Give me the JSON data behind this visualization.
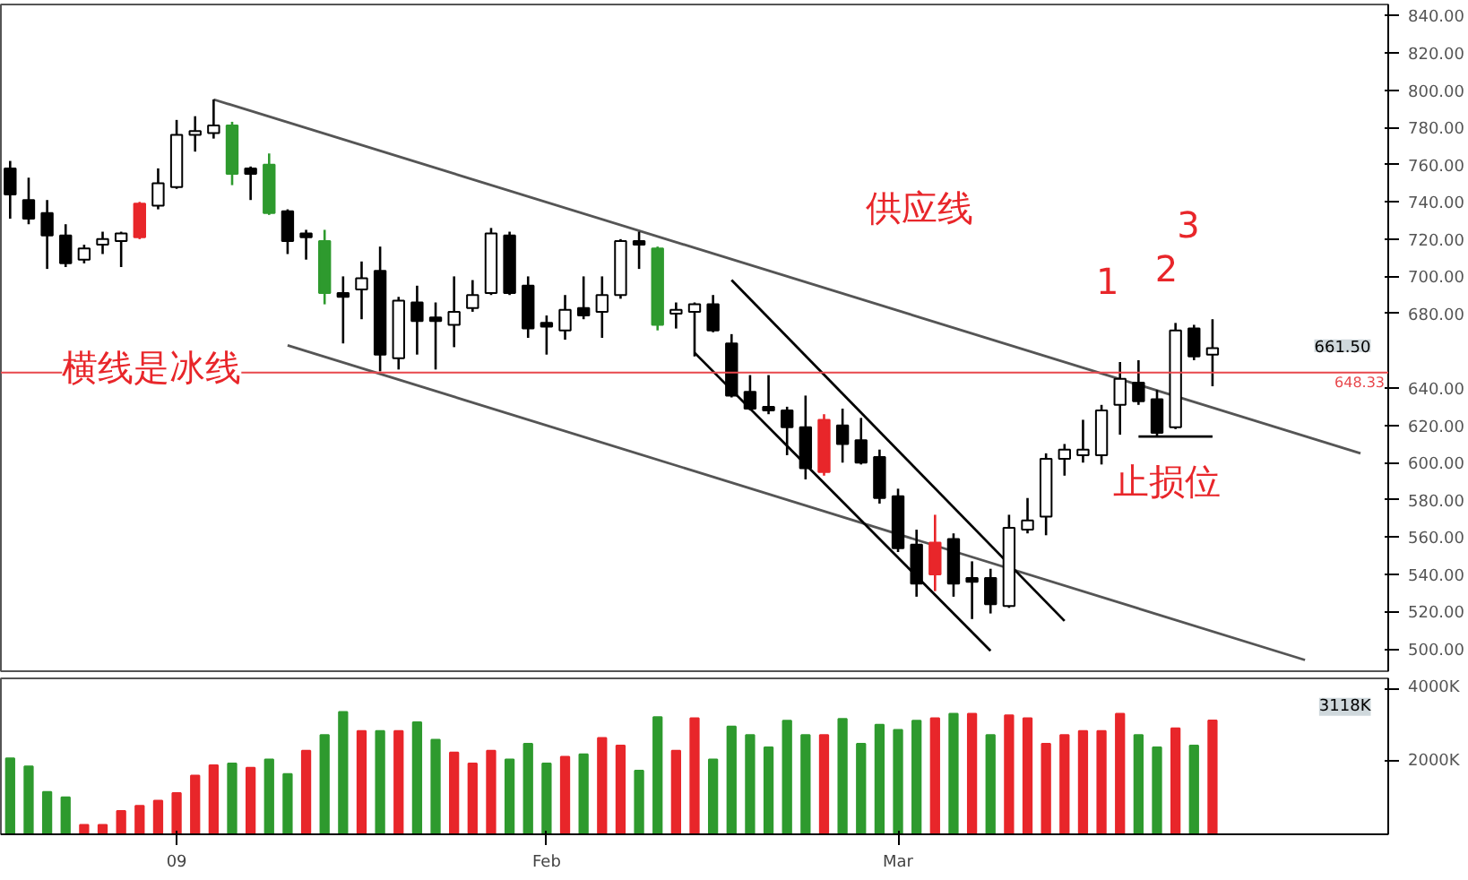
{
  "chart_data": [
    {
      "type": "candlestick",
      "categories": [
        null,
        null,
        null,
        null,
        null,
        null,
        null,
        null,
        null,
        null,
        null,
        null,
        null,
        null,
        null,
        null,
        null,
        null,
        null,
        null,
        null,
        null,
        null,
        null,
        null,
        null,
        null,
        null,
        null,
        null,
        null,
        null,
        null,
        null,
        null,
        null,
        null,
        null,
        null,
        null,
        null,
        null,
        null,
        null,
        null,
        null,
        null,
        null,
        null,
        null,
        null,
        null,
        null,
        null,
        null,
        null,
        null,
        null,
        null,
        null,
        null,
        null,
        null,
        null,
        null,
        null,
        null,
        null,
        null,
        null,
        null,
        null,
        null,
        null,
        null
      ],
      "ohlc": [
        [
          758,
          762,
          731,
          744
        ],
        [
          741,
          753,
          728,
          731
        ],
        [
          734,
          741,
          704,
          722
        ],
        [
          722,
          728,
          705,
          707
        ],
        [
          709,
          717,
          707,
          715
        ],
        [
          717,
          724,
          712,
          720
        ],
        [
          719,
          724,
          705,
          723
        ],
        [
          721,
          740,
          720,
          739
        ],
        [
          738,
          758,
          736,
          750
        ],
        [
          748,
          784,
          747,
          776
        ],
        [
          776,
          786,
          767,
          778
        ],
        [
          777,
          795,
          774,
          781
        ],
        [
          781,
          783,
          749,
          755
        ],
        [
          758,
          759,
          741,
          755
        ],
        [
          760,
          766,
          733,
          734
        ],
        [
          735,
          736,
          712,
          719
        ],
        [
          723,
          725,
          709,
          721
        ],
        [
          719,
          725,
          685,
          691
        ],
        [
          691,
          700,
          664,
          689
        ],
        [
          693,
          708,
          677,
          699
        ],
        [
          703,
          716,
          649,
          658
        ],
        [
          656,
          689,
          650,
          687
        ],
        [
          686,
          695,
          658,
          676
        ],
        [
          678,
          686,
          650,
          676
        ],
        [
          674,
          700,
          662,
          681
        ],
        [
          683,
          698,
          681,
          690
        ],
        [
          691,
          726,
          690,
          723
        ],
        [
          722,
          724,
          690,
          691
        ],
        [
          695,
          700,
          667,
          672
        ],
        [
          675,
          679,
          658,
          673
        ],
        [
          671,
          690,
          666,
          682
        ],
        [
          683,
          700,
          677,
          679
        ],
        [
          681,
          700,
          667,
          690
        ],
        [
          690,
          720,
          688,
          719
        ],
        [
          719,
          724,
          704,
          717
        ],
        [
          715,
          716,
          671,
          674
        ],
        [
          680,
          686,
          672,
          682
        ],
        [
          681,
          686,
          657,
          685
        ],
        [
          685,
          690,
          670,
          671
        ],
        [
          664,
          669,
          635,
          636
        ],
        [
          638,
          647,
          628,
          629
        ],
        [
          630,
          647,
          626,
          628
        ],
        [
          628,
          630,
          604,
          619
        ],
        [
          619,
          636,
          591,
          597
        ],
        [
          595,
          626,
          593,
          623
        ],
        [
          620,
          629,
          600,
          610
        ],
        [
          612,
          624,
          599,
          600
        ],
        [
          603,
          607,
          578,
          581
        ],
        [
          582,
          586,
          552,
          554
        ],
        [
          556,
          564,
          528,
          535
        ],
        [
          540,
          572,
          531,
          557
        ],
        [
          559,
          562,
          528,
          535
        ],
        [
          538,
          547,
          516,
          536
        ],
        [
          538,
          543,
          519,
          524
        ],
        [
          523,
          572,
          522,
          565
        ],
        [
          564,
          581,
          562,
          569
        ],
        [
          571,
          605,
          561,
          602
        ],
        [
          602,
          610,
          593,
          607
        ],
        [
          604,
          623,
          600,
          607
        ],
        [
          604,
          631,
          599,
          628
        ],
        [
          631,
          654,
          615,
          645
        ],
        [
          643,
          655,
          631,
          633
        ],
        [
          634,
          639,
          614,
          616
        ],
        [
          619,
          675,
          618,
          671
        ],
        [
          672,
          674,
          655,
          657
        ],
        [
          658,
          677,
          641,
          661.5
        ],
        null,
        null,
        null,
        null,
        null,
        null,
        null,
        null,
        null
      ],
      "colors": [
        "#000000",
        "#000000",
        "#000000",
        "#000000",
        "#ffffff",
        "#ffffff",
        "#ffffff",
        "#e8262a",
        "#ffffff",
        "#ffffff",
        "#ffffff",
        "#ffffff",
        "#2e9a2e",
        "#000000",
        "#2e9a2e",
        "#000000",
        "#000000",
        "#2e9a2e",
        "#000000",
        "#ffffff",
        "#000000",
        "#ffffff",
        "#000000",
        "#000000",
        "#ffffff",
        "#ffffff",
        "#ffffff",
        "#000000",
        "#000000",
        "#000000",
        "#ffffff",
        "#000000",
        "#ffffff",
        "#ffffff",
        "#000000",
        "#2e9a2e",
        "#ffffff",
        "#ffffff",
        "#000000",
        "#000000",
        "#000000",
        "#000000",
        "#000000",
        "#000000",
        "#e8262a",
        "#000000",
        "#000000",
        "#000000",
        "#000000",
        "#000000",
        "#e8262a",
        "#000000",
        "#000000",
        "#000000",
        "#ffffff",
        "#ffffff",
        "#ffffff",
        "#ffffff",
        "#ffffff",
        "#ffffff",
        "#ffffff",
        "#000000",
        "#000000",
        "#ffffff",
        "#000000",
        "#ffffff",
        null,
        null,
        null,
        null,
        null,
        null,
        null,
        null,
        null
      ],
      "series": [
        {
          "type": "line",
          "color": "#555555",
          "values": [
            null,
            null,
            null,
            null,
            null,
            null,
            null,
            null,
            null,
            null,
            null,
            795,
            null,
            null,
            null,
            null,
            null,
            null,
            null,
            null,
            null,
            null,
            null,
            null,
            null,
            null,
            null,
            null,
            null,
            null,
            null,
            null,
            null,
            null,
            null,
            null,
            null,
            null,
            null,
            null,
            null,
            null,
            null,
            null,
            null,
            null,
            null,
            null,
            null,
            null,
            null,
            null,
            null,
            null,
            null,
            null,
            null,
            null,
            null,
            null,
            null,
            null,
            null,
            null,
            null,
            null,
            null,
            null,
            null,
            null,
            null,
            null,
            null,
            605,
            null
          ]
        },
        {
          "type": "line",
          "color": "#555555",
          "values": [
            null,
            null,
            null,
            null,
            null,
            null,
            null,
            null,
            null,
            null,
            null,
            null,
            null,
            null,
            null,
            663,
            null,
            null,
            null,
            null,
            null,
            null,
            null,
            null,
            null,
            null,
            null,
            null,
            null,
            null,
            null,
            null,
            null,
            null,
            null,
            null,
            null,
            null,
            null,
            null,
            null,
            null,
            null,
            null,
            null,
            null,
            null,
            null,
            null,
            null,
            null,
            null,
            null,
            null,
            null,
            null,
            null,
            null,
            null,
            null,
            null,
            null,
            null,
            null,
            null,
            null,
            null,
            null,
            null,
            null,
            494,
            null,
            null,
            null,
            null
          ]
        },
        {
          "type": "line",
          "color": "#000000",
          "values": [
            null,
            null,
            null,
            null,
            null,
            null,
            null,
            null,
            null,
            null,
            null,
            null,
            null,
            null,
            null,
            null,
            null,
            null,
            null,
            null,
            null,
            null,
            null,
            null,
            null,
            null,
            null,
            null,
            null,
            null,
            null,
            null,
            null,
            null,
            null,
            null,
            null,
            659,
            null,
            null,
            null,
            null,
            null,
            null,
            null,
            null,
            null,
            null,
            null,
            null,
            null,
            null,
            null,
            499,
            null,
            null,
            null,
            null,
            null,
            null,
            null,
            null,
            null,
            null,
            null,
            null,
            null,
            null,
            null,
            null,
            null,
            null,
            null,
            null,
            null
          ]
        },
        {
          "type": "line",
          "color": "#000000",
          "values": [
            null,
            null,
            null,
            null,
            null,
            null,
            null,
            null,
            null,
            null,
            null,
            null,
            null,
            null,
            null,
            null,
            null,
            null,
            null,
            null,
            null,
            null,
            null,
            null,
            null,
            null,
            null,
            null,
            null,
            null,
            null,
            null,
            null,
            null,
            null,
            null,
            null,
            null,
            null,
            698,
            null,
            null,
            null,
            null,
            null,
            null,
            null,
            null,
            null,
            null,
            null,
            null,
            null,
            null,
            null,
            null,
            null,
            515,
            null,
            null,
            null,
            null,
            null,
            null,
            null,
            null,
            null,
            null,
            null,
            null,
            null,
            null,
            null,
            null,
            null
          ]
        },
        {
          "type": "line",
          "color": "#000000",
          "values": [
            null,
            null,
            null,
            null,
            null,
            null,
            null,
            null,
            null,
            null,
            null,
            null,
            null,
            null,
            null,
            null,
            null,
            null,
            null,
            null,
            null,
            null,
            null,
            null,
            null,
            null,
            null,
            null,
            null,
            null,
            null,
            null,
            null,
            null,
            null,
            null,
            null,
            null,
            null,
            null,
            null,
            null,
            null,
            null,
            null,
            null,
            null,
            null,
            null,
            null,
            null,
            null,
            null,
            null,
            null,
            null,
            null,
            null,
            null,
            null,
            null,
            614,
            null,
            null,
            null,
            614,
            null,
            null,
            null,
            null,
            null,
            null,
            null,
            null,
            null
          ]
        }
      ],
      "ylim": [
        488,
        846
      ],
      "yticks": [
        {
          "value": 500,
          "label": "500.00"
        },
        {
          "value": 520,
          "label": "520.00"
        },
        {
          "value": 540,
          "label": "540.00"
        },
        {
          "value": 560,
          "label": "560.00"
        },
        {
          "value": 580,
          "label": "580.00"
        },
        {
          "value": 600,
          "label": "600.00"
        },
        {
          "value": 620,
          "label": "620.00"
        },
        {
          "value": 640,
          "label": "640.00"
        },
        {
          "value": 680,
          "label": "680.00"
        },
        {
          "value": 700,
          "label": "700.00"
        },
        {
          "value": 720,
          "label": "720.00"
        },
        {
          "value": 740,
          "label": "740.00"
        },
        {
          "value": 760,
          "label": "760.00"
        },
        {
          "value": 780,
          "label": "780.00"
        },
        {
          "value": 800,
          "label": "800.00"
        },
        {
          "value": 820,
          "label": "820.00"
        },
        {
          "value": 840,
          "label": "840.00"
        }
      ],
      "tick_labels": "y",
      "ref_lines": [
        {
          "axis": "y",
          "value": 648.33,
          "label": "648.33",
          "color": "#e8474c"
        }
      ],
      "annotations": [
        "供应线",
        "横线是冰线",
        "止损位",
        "1",
        "2",
        "3",
        "661.50"
      ]
    },
    {
      "type": "bar",
      "categories": [
        null,
        null,
        null,
        null,
        null,
        null,
        null,
        null,
        null,
        "09",
        null,
        null,
        null,
        null,
        null,
        null,
        null,
        null,
        null,
        null,
        null,
        null,
        null,
        null,
        null,
        null,
        null,
        null,
        null,
        "Feb",
        null,
        null,
        null,
        null,
        null,
        null,
        null,
        null,
        null,
        null,
        null,
        null,
        null,
        null,
        null,
        null,
        null,
        null,
        "Mar",
        null,
        null,
        null,
        null,
        null,
        null,
        null,
        null,
        null,
        null,
        null,
        null,
        null,
        null,
        null,
        null,
        null,
        null,
        null,
        null,
        null,
        null,
        null,
        null,
        null,
        null
      ],
      "values": [
        2080,
        1860,
        1160,
        1010,
        260,
        260,
        640,
        780,
        920,
        1130,
        1610,
        1890,
        1940,
        1820,
        2050,
        1650,
        2290,
        2720,
        3350,
        2830,
        2830,
        2830,
        3070,
        2590,
        2240,
        1940,
        2290,
        2050,
        2480,
        1940,
        2120,
        2190,
        2640,
        2430,
        1740,
        3210,
        2290,
        3180,
        2050,
        2950,
        2720,
        2380,
        3110,
        2720,
        2720,
        3160,
        2480,
        3000,
        2860,
        3110,
        3180,
        3300,
        3300,
        2720,
        3260,
        3180,
        2480,
        2720,
        2830,
        2830,
        3300,
        2720,
        2380,
        2900,
        2430,
        3118,
        null,
        null,
        null,
        null,
        null,
        null,
        null,
        null,
        null
      ],
      "colors": [
        "#2e9a2e",
        "#2e9a2e",
        "#2e9a2e",
        "#2e9a2e",
        "#e8262a",
        "#e8262a",
        "#e8262a",
        "#e8262a",
        "#e8262a",
        "#e8262a",
        "#e8262a",
        "#e8262a",
        "#2e9a2e",
        "#e8262a",
        "#2e9a2e",
        "#2e9a2e",
        "#e8262a",
        "#2e9a2e",
        "#2e9a2e",
        "#e8262a",
        "#2e9a2e",
        "#e8262a",
        "#2e9a2e",
        "#2e9a2e",
        "#e8262a",
        "#e8262a",
        "#e8262a",
        "#2e9a2e",
        "#2e9a2e",
        "#2e9a2e",
        "#e8262a",
        "#2e9a2e",
        "#e8262a",
        "#e8262a",
        "#2e9a2e",
        "#2e9a2e",
        "#e8262a",
        "#e8262a",
        "#2e9a2e",
        "#2e9a2e",
        "#2e9a2e",
        "#2e9a2e",
        "#2e9a2e",
        "#2e9a2e",
        "#e8262a",
        "#2e9a2e",
        "#2e9a2e",
        "#2e9a2e",
        "#2e9a2e",
        "#2e9a2e",
        "#e8262a",
        "#2e9a2e",
        "#e8262a",
        "#2e9a2e",
        "#e8262a",
        "#e8262a",
        "#e8262a",
        "#e8262a",
        "#e8262a",
        "#e8262a",
        "#e8262a",
        "#2e9a2e",
        "#2e9a2e",
        "#e8262a",
        "#2e9a2e",
        "#e8262a",
        null,
        null,
        null,
        null,
        null,
        null,
        null,
        null,
        null
      ],
      "ylim": [
        0,
        4270
      ],
      "yticks": [
        {
          "value": 2000,
          "label": "2000K"
        },
        {
          "value": 4000,
          "label": "4000K"
        }
      ],
      "annotations": [
        "3118K"
      ]
    }
  ]
}
